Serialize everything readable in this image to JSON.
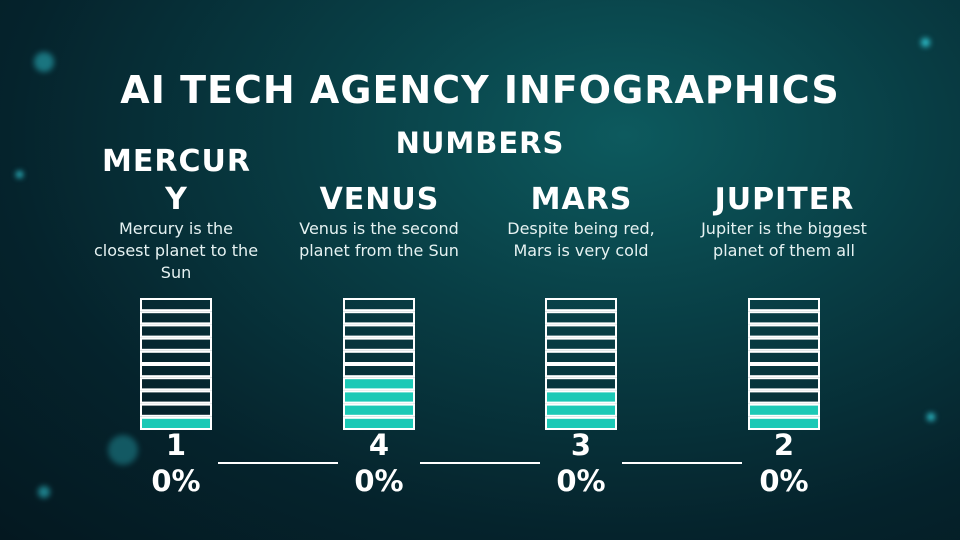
{
  "header": {
    "title": "AI TECH AGENCY INFOGRAPHICS",
    "subtitle": "NUMBERS"
  },
  "items": [
    {
      "name": "MERCURY",
      "description": "Mercury is the closest planet to the Sun",
      "value": 10,
      "value_label": "10%"
    },
    {
      "name": "VENUS",
      "description": "Venus is the second planet from the Sun",
      "value": 40,
      "value_label": "40%"
    },
    {
      "name": "MARS",
      "description": "Despite being red, Mars is very cold",
      "value": 30,
      "value_label": "30%"
    },
    {
      "name": "JUPITER",
      "description": "Jupiter is the biggest planet of them all",
      "value": 20,
      "value_label": "20%"
    }
  ]
}
